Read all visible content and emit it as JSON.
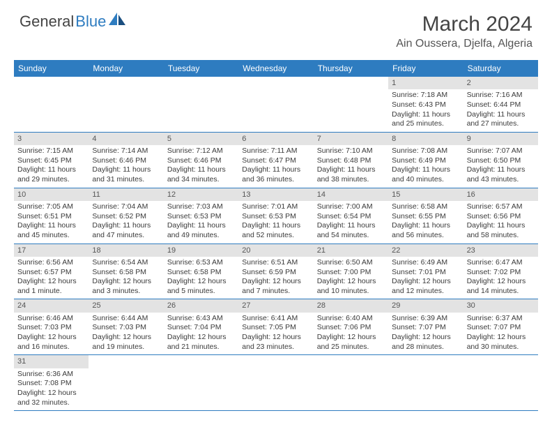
{
  "logo": {
    "general": "General",
    "blue": "Blue"
  },
  "title": "March 2024",
  "location": "Ain Oussera, Djelfa, Algeria",
  "colors": {
    "header_bg": "#2e7cc0",
    "header_text": "#ffffff",
    "daynum_bg": "#e3e3e3",
    "cell_text": "#333333",
    "border": "#2e7cc0"
  },
  "day_labels": [
    "Sunday",
    "Monday",
    "Tuesday",
    "Wednesday",
    "Thursday",
    "Friday",
    "Saturday"
  ],
  "weeks": [
    [
      null,
      null,
      null,
      null,
      null,
      {
        "n": "1",
        "sr": "Sunrise: 7:18 AM",
        "ss": "Sunset: 6:43 PM",
        "dl": "Daylight: 11 hours and 25 minutes."
      },
      {
        "n": "2",
        "sr": "Sunrise: 7:16 AM",
        "ss": "Sunset: 6:44 PM",
        "dl": "Daylight: 11 hours and 27 minutes."
      }
    ],
    [
      {
        "n": "3",
        "sr": "Sunrise: 7:15 AM",
        "ss": "Sunset: 6:45 PM",
        "dl": "Daylight: 11 hours and 29 minutes."
      },
      {
        "n": "4",
        "sr": "Sunrise: 7:14 AM",
        "ss": "Sunset: 6:46 PM",
        "dl": "Daylight: 11 hours and 31 minutes."
      },
      {
        "n": "5",
        "sr": "Sunrise: 7:12 AM",
        "ss": "Sunset: 6:46 PM",
        "dl": "Daylight: 11 hours and 34 minutes."
      },
      {
        "n": "6",
        "sr": "Sunrise: 7:11 AM",
        "ss": "Sunset: 6:47 PM",
        "dl": "Daylight: 11 hours and 36 minutes."
      },
      {
        "n": "7",
        "sr": "Sunrise: 7:10 AM",
        "ss": "Sunset: 6:48 PM",
        "dl": "Daylight: 11 hours and 38 minutes."
      },
      {
        "n": "8",
        "sr": "Sunrise: 7:08 AM",
        "ss": "Sunset: 6:49 PM",
        "dl": "Daylight: 11 hours and 40 minutes."
      },
      {
        "n": "9",
        "sr": "Sunrise: 7:07 AM",
        "ss": "Sunset: 6:50 PM",
        "dl": "Daylight: 11 hours and 43 minutes."
      }
    ],
    [
      {
        "n": "10",
        "sr": "Sunrise: 7:05 AM",
        "ss": "Sunset: 6:51 PM",
        "dl": "Daylight: 11 hours and 45 minutes."
      },
      {
        "n": "11",
        "sr": "Sunrise: 7:04 AM",
        "ss": "Sunset: 6:52 PM",
        "dl": "Daylight: 11 hours and 47 minutes."
      },
      {
        "n": "12",
        "sr": "Sunrise: 7:03 AM",
        "ss": "Sunset: 6:53 PM",
        "dl": "Daylight: 11 hours and 49 minutes."
      },
      {
        "n": "13",
        "sr": "Sunrise: 7:01 AM",
        "ss": "Sunset: 6:53 PM",
        "dl": "Daylight: 11 hours and 52 minutes."
      },
      {
        "n": "14",
        "sr": "Sunrise: 7:00 AM",
        "ss": "Sunset: 6:54 PM",
        "dl": "Daylight: 11 hours and 54 minutes."
      },
      {
        "n": "15",
        "sr": "Sunrise: 6:58 AM",
        "ss": "Sunset: 6:55 PM",
        "dl": "Daylight: 11 hours and 56 minutes."
      },
      {
        "n": "16",
        "sr": "Sunrise: 6:57 AM",
        "ss": "Sunset: 6:56 PM",
        "dl": "Daylight: 11 hours and 58 minutes."
      }
    ],
    [
      {
        "n": "17",
        "sr": "Sunrise: 6:56 AM",
        "ss": "Sunset: 6:57 PM",
        "dl": "Daylight: 12 hours and 1 minute."
      },
      {
        "n": "18",
        "sr": "Sunrise: 6:54 AM",
        "ss": "Sunset: 6:58 PM",
        "dl": "Daylight: 12 hours and 3 minutes."
      },
      {
        "n": "19",
        "sr": "Sunrise: 6:53 AM",
        "ss": "Sunset: 6:58 PM",
        "dl": "Daylight: 12 hours and 5 minutes."
      },
      {
        "n": "20",
        "sr": "Sunrise: 6:51 AM",
        "ss": "Sunset: 6:59 PM",
        "dl": "Daylight: 12 hours and 7 minutes."
      },
      {
        "n": "21",
        "sr": "Sunrise: 6:50 AM",
        "ss": "Sunset: 7:00 PM",
        "dl": "Daylight: 12 hours and 10 minutes."
      },
      {
        "n": "22",
        "sr": "Sunrise: 6:49 AM",
        "ss": "Sunset: 7:01 PM",
        "dl": "Daylight: 12 hours and 12 minutes."
      },
      {
        "n": "23",
        "sr": "Sunrise: 6:47 AM",
        "ss": "Sunset: 7:02 PM",
        "dl": "Daylight: 12 hours and 14 minutes."
      }
    ],
    [
      {
        "n": "24",
        "sr": "Sunrise: 6:46 AM",
        "ss": "Sunset: 7:03 PM",
        "dl": "Daylight: 12 hours and 16 minutes."
      },
      {
        "n": "25",
        "sr": "Sunrise: 6:44 AM",
        "ss": "Sunset: 7:03 PM",
        "dl": "Daylight: 12 hours and 19 minutes."
      },
      {
        "n": "26",
        "sr": "Sunrise: 6:43 AM",
        "ss": "Sunset: 7:04 PM",
        "dl": "Daylight: 12 hours and 21 minutes."
      },
      {
        "n": "27",
        "sr": "Sunrise: 6:41 AM",
        "ss": "Sunset: 7:05 PM",
        "dl": "Daylight: 12 hours and 23 minutes."
      },
      {
        "n": "28",
        "sr": "Sunrise: 6:40 AM",
        "ss": "Sunset: 7:06 PM",
        "dl": "Daylight: 12 hours and 25 minutes."
      },
      {
        "n": "29",
        "sr": "Sunrise: 6:39 AM",
        "ss": "Sunset: 7:07 PM",
        "dl": "Daylight: 12 hours and 28 minutes."
      },
      {
        "n": "30",
        "sr": "Sunrise: 6:37 AM",
        "ss": "Sunset: 7:07 PM",
        "dl": "Daylight: 12 hours and 30 minutes."
      }
    ],
    [
      {
        "n": "31",
        "sr": "Sunrise: 6:36 AM",
        "ss": "Sunset: 7:08 PM",
        "dl": "Daylight: 12 hours and 32 minutes."
      },
      null,
      null,
      null,
      null,
      null,
      null
    ]
  ]
}
